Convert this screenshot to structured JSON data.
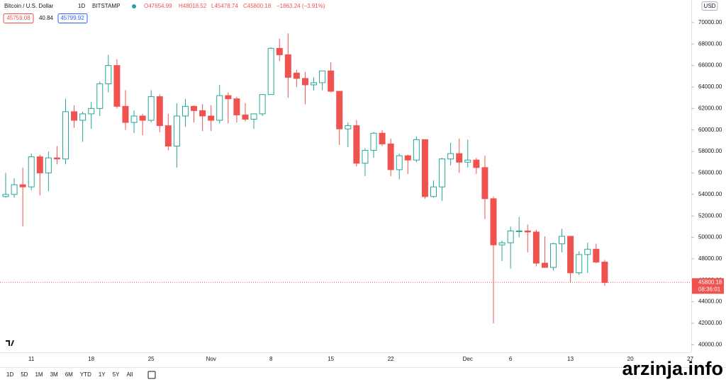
{
  "header": {
    "symbol": "Bitcoin / U.S. Dollar",
    "interval": "1D",
    "exchange": "BITSTAMP",
    "ohlc": [
      "O47654.99",
      "H48018.52",
      "L45478.74",
      "C45800.18",
      "−1863.24 (−3.91%)"
    ],
    "sell": "45759.08",
    "spread": "40.84",
    "buy": "45799.92",
    "currency": "USD"
  },
  "toolbar": {
    "ranges": [
      "1D",
      "5D",
      "1M",
      "3M",
      "6M",
      "YTD",
      "1Y",
      "5Y",
      "All"
    ]
  },
  "watermark": "arzinja.info",
  "chart_data": {
    "type": "candlestick",
    "categories": [
      null,
      null,
      null,
      "11",
      null,
      null,
      null,
      null,
      null,
      null,
      "18",
      null,
      null,
      null,
      null,
      null,
      null,
      "25",
      null,
      null,
      null,
      null,
      null,
      null,
      "Nov",
      null,
      null,
      null,
      null,
      null,
      null,
      "8",
      null,
      null,
      null,
      null,
      null,
      null,
      "15",
      null,
      null,
      null,
      null,
      null,
      null,
      "22",
      null,
      null,
      null,
      null,
      null,
      null,
      null,
      null,
      "Dec",
      null,
      null,
      null,
      null,
      "6",
      null,
      null,
      null,
      null,
      null,
      null,
      "13",
      null,
      null,
      null,
      null,
      null,
      null,
      "20",
      null,
      null,
      null,
      null,
      null,
      null,
      "27"
    ],
    "open": [
      53800,
      54000,
      54900,
      54700,
      57500,
      56000,
      57400,
      57300,
      61700,
      60900,
      61500,
      62000,
      64300,
      66000,
      62200,
      60700,
      61300,
      60900,
      63100,
      60400,
      58500,
      61300,
      62200,
      61800,
      61300,
      60900,
      63200,
      62900,
      61400,
      61000,
      61500,
      63300,
      67600,
      67000,
      65300,
      64800,
      64200,
      64400,
      65500,
      63600,
      60100,
      60400,
      56900,
      58100,
      59700,
      58700,
      56300,
      57600,
      57200,
      59100,
      53800,
      54700,
      57300,
      57800,
      57000,
      57200,
      56500,
      53600,
      49300,
      49500,
      50600,
      50600,
      50500,
      47600,
      47200,
      49400,
      50100,
      46700,
      48400,
      48900,
      47700,
      null,
      null,
      null,
      null,
      null,
      null,
      null,
      null,
      null,
      null
    ],
    "high": [
      56000,
      55500,
      56500,
      57800,
      57700,
      58000,
      58500,
      62900,
      62300,
      61700,
      62600,
      64500,
      67000,
      66600,
      63700,
      61800,
      61500,
      63700,
      63300,
      61500,
      62500,
      62900,
      62300,
      62400,
      62300,
      64200,
      63500,
      63100,
      62500,
      61500,
      63300,
      67700,
      68500,
      69000,
      65600,
      65400,
      64900,
      65500,
      66300,
      63600,
      60700,
      60900,
      58300,
      59800,
      60000,
      59200,
      57800,
      57700,
      59400,
      59100,
      55300,
      57400,
      58800,
      59200,
      59100,
      57400,
      57600,
      53800,
      49700,
      51000,
      51900,
      51200,
      50700,
      50100,
      49500,
      50800,
      50100,
      48700,
      49500,
      49400,
      47900,
      null,
      null,
      null,
      null,
      null,
      null,
      null,
      null,
      null,
      null
    ],
    "low": [
      53700,
      53700,
      51000,
      54400,
      53900,
      54300,
      56800,
      56800,
      60200,
      58900,
      60100,
      61300,
      63500,
      62000,
      60000,
      59700,
      59500,
      60700,
      59800,
      58100,
      56500,
      60300,
      60700,
      59900,
      59900,
      60600,
      60600,
      60700,
      60800,
      60100,
      61300,
      63300,
      66400,
      63000,
      64000,
      62400,
      63700,
      63700,
      63500,
      58600,
      58400,
      56600,
      55700,
      57400,
      58500,
      55700,
      55400,
      55900,
      57000,
      53600,
      53700,
      53400,
      56700,
      56000,
      56500,
      55900,
      51700,
      42000,
      47800,
      47100,
      50000,
      48600,
      47300,
      47200,
      46900,
      48600,
      45800,
      46500,
      46700,
      47600,
      45500,
      null,
      null,
      null,
      null,
      null,
      null,
      null,
      null,
      null,
      null
    ],
    "close": [
      54000,
      54900,
      54700,
      57500,
      56000,
      57400,
      57300,
      61700,
      60900,
      61500,
      62000,
      64300,
      66000,
      62200,
      60700,
      61300,
      60900,
      63100,
      60400,
      58500,
      61300,
      62200,
      61800,
      61300,
      60900,
      63200,
      62900,
      61400,
      61000,
      61500,
      63300,
      67600,
      67000,
      64900,
      64800,
      64200,
      64400,
      65500,
      63600,
      60100,
      60400,
      56900,
      58100,
      59700,
      58700,
      56300,
      57600,
      57200,
      59100,
      53800,
      54700,
      57300,
      57800,
      57000,
      57200,
      56500,
      53600,
      49300,
      49500,
      50600,
      50600,
      50500,
      47600,
      47200,
      49400,
      50100,
      46700,
      48400,
      48900,
      47700,
      45800,
      null,
      null,
      null,
      null,
      null,
      null,
      null,
      null,
      null,
      null
    ],
    "up_color": "#26a69a",
    "down_color": "#ef5350",
    "ylim": [
      39300,
      72100
    ],
    "yticks": [
      {
        "value": 40000,
        "label": "40000.00"
      },
      {
        "value": 42000,
        "label": "42000.00"
      },
      {
        "value": 44000,
        "label": "44000.00"
      },
      {
        "value": 46000,
        "label": "46000.00"
      },
      {
        "value": 48000,
        "label": "48000.00"
      },
      {
        "value": 50000,
        "label": "50000.00"
      },
      {
        "value": 52000,
        "label": "52000.00"
      },
      {
        "value": 54000,
        "label": "54000.00"
      },
      {
        "value": 56000,
        "label": "56000.00"
      },
      {
        "value": 58000,
        "label": "58000.00"
      },
      {
        "value": 60000,
        "label": "60000.00"
      },
      {
        "value": 62000,
        "label": "62000.00"
      },
      {
        "value": 64000,
        "label": "64000.00"
      },
      {
        "value": 66000,
        "label": "66000.00"
      },
      {
        "value": 68000,
        "label": "68000.00"
      },
      {
        "value": 70000,
        "label": "70000.00"
      }
    ],
    "last_price": 45800.18,
    "countdown": "08:36:01"
  }
}
